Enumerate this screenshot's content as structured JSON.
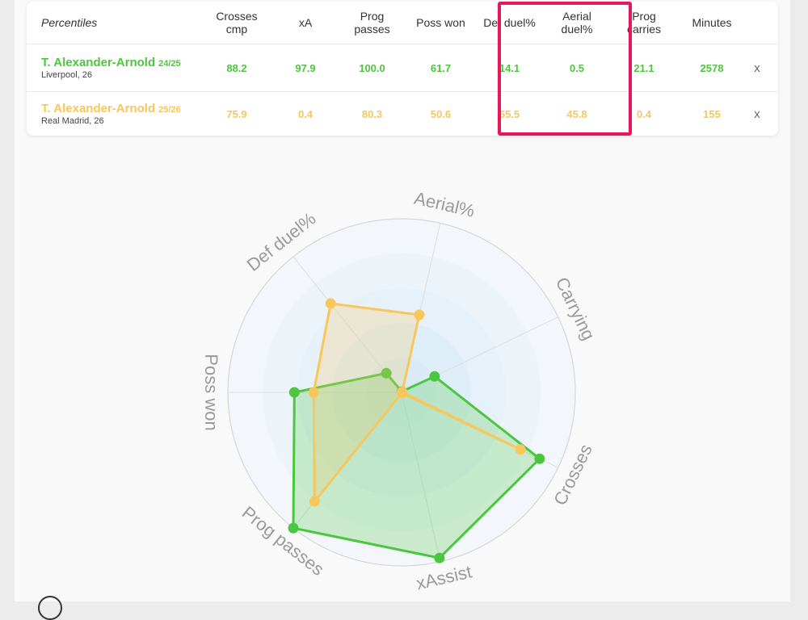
{
  "table": {
    "headers": {
      "percentiles": "Percentiles",
      "columns": [
        "Crosses\ncmp",
        "xA",
        "Prog\npasses",
        "Poss won",
        "Def duel%",
        "Aerial\nduel%",
        "Prog\ncarries",
        "Minutes"
      ]
    },
    "remove_label": "x",
    "players": [
      {
        "name": "T. Alexander-Arnold",
        "season": "24/25",
        "team": "Liverpool, 26",
        "color": "#4cc640",
        "values": [
          "88.2",
          "97.9",
          "100.0",
          "61.7",
          "14.1",
          "0.5",
          "21.1",
          "2578"
        ]
      },
      {
        "name": "T. Alexander-Arnold",
        "season": "25/26",
        "team": "Real Madrid, 26",
        "color": "#f7c75e",
        "values": [
          "75.9",
          "0.4",
          "80.3",
          "50.6",
          "65.5",
          "45.8",
          "0.4",
          "155"
        ]
      }
    ],
    "highlight_color": "#e8175d"
  },
  "chart_data": {
    "type": "radar",
    "axes": [
      "Crosses",
      "xAssist",
      "Prog passes",
      "Poss won",
      "Def duel%",
      "Aerial%",
      "Carrying"
    ],
    "range": [
      0,
      100
    ],
    "series": [
      {
        "color": "#4cc640",
        "values": [
          88.2,
          97.9,
          100.0,
          61.7,
          14.1,
          0.5,
          21.1
        ]
      },
      {
        "color": "#f7c75e",
        "values": [
          75.9,
          0.4,
          80.3,
          50.6,
          65.5,
          45.8,
          0.4
        ]
      }
    ]
  }
}
